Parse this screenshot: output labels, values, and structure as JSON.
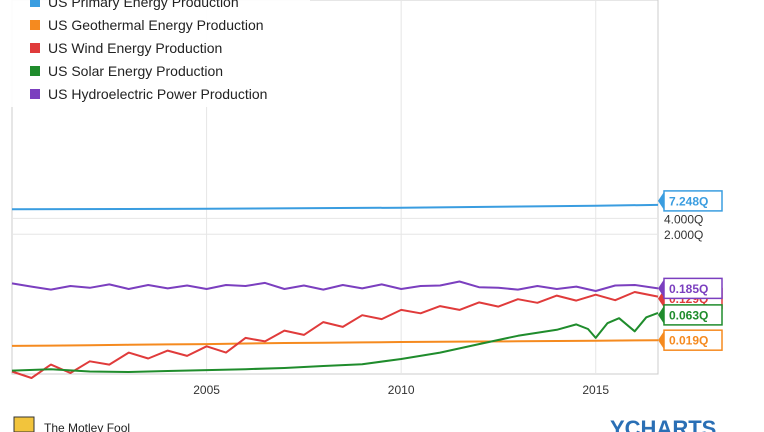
{
  "chart_data": {
    "type": "line",
    "y_scale": "log",
    "grid": true,
    "legend_placement": "top-left",
    "x_range": [
      2000.0,
      2016.6
    ],
    "x_ticks": [
      2005,
      2010,
      2015
    ],
    "y_ticks": [
      {
        "value": 4.0,
        "label": "4.000Q"
      },
      {
        "value": 2.0,
        "label": "2.000Q"
      }
    ],
    "series": [
      {
        "name": "US Primary Energy Production",
        "color": "#3a9de0",
        "last_label": "7.248Q",
        "last_value": 7.248,
        "points": [
          [
            2000.0,
            6.0
          ],
          [
            2005.0,
            6.1
          ],
          [
            2010.0,
            6.4
          ],
          [
            2015.0,
            7.0
          ],
          [
            2016.6,
            7.248
          ]
        ]
      },
      {
        "name": "US Geothermal Energy Production",
        "color": "#f58a1f",
        "last_label": "0.019Q",
        "last_value": 0.019,
        "points": [
          [
            2000.0,
            0.0148
          ],
          [
            2001.0,
            0.015
          ],
          [
            2002.0,
            0.0152
          ],
          [
            2003.0,
            0.0155
          ],
          [
            2004.0,
            0.0158
          ],
          [
            2005.0,
            0.016
          ],
          [
            2006.0,
            0.0164
          ],
          [
            2007.0,
            0.0168
          ],
          [
            2008.0,
            0.017
          ],
          [
            2009.0,
            0.0172
          ],
          [
            2010.0,
            0.0175
          ],
          [
            2011.0,
            0.0177
          ],
          [
            2012.0,
            0.0179
          ],
          [
            2013.0,
            0.0181
          ],
          [
            2014.0,
            0.0183
          ],
          [
            2015.0,
            0.0186
          ],
          [
            2016.0,
            0.0188
          ],
          [
            2016.6,
            0.019
          ]
        ]
      },
      {
        "name": "US Wind Energy Production",
        "color": "#e03b3b",
        "last_label": "0.129Q",
        "last_value": 0.129,
        "points": [
          [
            2000.0,
            0.0048
          ],
          [
            2000.5,
            0.0036
          ],
          [
            2001.0,
            0.0065
          ],
          [
            2001.5,
            0.0045
          ],
          [
            2002.0,
            0.0075
          ],
          [
            2002.5,
            0.0065
          ],
          [
            2003.0,
            0.011
          ],
          [
            2003.5,
            0.0085
          ],
          [
            2004.0,
            0.012
          ],
          [
            2004.5,
            0.0095
          ],
          [
            2005.0,
            0.0145
          ],
          [
            2005.5,
            0.011
          ],
          [
            2006.0,
            0.021
          ],
          [
            2006.5,
            0.018
          ],
          [
            2007.0,
            0.029
          ],
          [
            2007.5,
            0.024
          ],
          [
            2008.0,
            0.042
          ],
          [
            2008.5,
            0.034
          ],
          [
            2009.0,
            0.057
          ],
          [
            2009.5,
            0.048
          ],
          [
            2010.0,
            0.072
          ],
          [
            2010.5,
            0.062
          ],
          [
            2011.0,
            0.085
          ],
          [
            2011.5,
            0.072
          ],
          [
            2012.0,
            0.1
          ],
          [
            2012.5,
            0.083
          ],
          [
            2013.0,
            0.115
          ],
          [
            2013.5,
            0.098
          ],
          [
            2014.0,
            0.135
          ],
          [
            2014.5,
            0.108
          ],
          [
            2015.0,
            0.14
          ],
          [
            2015.5,
            0.11
          ],
          [
            2016.0,
            0.158
          ],
          [
            2016.6,
            0.129
          ]
        ]
      },
      {
        "name": "US Solar Energy Production",
        "color": "#1f8c2c",
        "last_label": "0.063Q",
        "last_value": 0.063,
        "points": [
          [
            2000.0,
            0.005
          ],
          [
            2001.0,
            0.0053
          ],
          [
            2002.0,
            0.0048
          ],
          [
            2003.0,
            0.0047
          ],
          [
            2004.0,
            0.0049
          ],
          [
            2005.0,
            0.0051
          ],
          [
            2006.0,
            0.0053
          ],
          [
            2007.0,
            0.0056
          ],
          [
            2008.0,
            0.0061
          ],
          [
            2009.0,
            0.0066
          ],
          [
            2010.0,
            0.0083
          ],
          [
            2011.0,
            0.011
          ],
          [
            2012.0,
            0.016
          ],
          [
            2013.0,
            0.023
          ],
          [
            2014.0,
            0.03
          ],
          [
            2014.5,
            0.038
          ],
          [
            2014.8,
            0.031
          ],
          [
            2015.0,
            0.021
          ],
          [
            2015.3,
            0.04
          ],
          [
            2015.6,
            0.05
          ],
          [
            2016.0,
            0.028
          ],
          [
            2016.3,
            0.052
          ],
          [
            2016.6,
            0.063
          ]
        ]
      },
      {
        "name": "US Hydroelectric Power Production",
        "color": "#7b3fbf",
        "last_label": "0.185Q",
        "last_value": 0.185,
        "points": [
          [
            2000.0,
            0.23
          ],
          [
            2000.5,
            0.2
          ],
          [
            2001.0,
            0.175
          ],
          [
            2001.5,
            0.205
          ],
          [
            2002.0,
            0.19
          ],
          [
            2002.5,
            0.22
          ],
          [
            2003.0,
            0.18
          ],
          [
            2003.5,
            0.215
          ],
          [
            2004.0,
            0.185
          ],
          [
            2004.5,
            0.21
          ],
          [
            2005.0,
            0.18
          ],
          [
            2005.5,
            0.215
          ],
          [
            2006.0,
            0.205
          ],
          [
            2006.5,
            0.235
          ],
          [
            2007.0,
            0.18
          ],
          [
            2007.5,
            0.21
          ],
          [
            2008.0,
            0.175
          ],
          [
            2008.5,
            0.215
          ],
          [
            2009.0,
            0.185
          ],
          [
            2009.5,
            0.22
          ],
          [
            2010.0,
            0.18
          ],
          [
            2010.5,
            0.205
          ],
          [
            2011.0,
            0.21
          ],
          [
            2011.5,
            0.25
          ],
          [
            2012.0,
            0.195
          ],
          [
            2012.5,
            0.19
          ],
          [
            2013.0,
            0.175
          ],
          [
            2013.5,
            0.205
          ],
          [
            2014.0,
            0.18
          ],
          [
            2014.5,
            0.2
          ],
          [
            2015.0,
            0.165
          ],
          [
            2015.5,
            0.21
          ],
          [
            2016.0,
            0.215
          ],
          [
            2016.6,
            0.185
          ]
        ]
      }
    ]
  },
  "footer": {
    "brand": "The Motley Fool",
    "logo_text": "YCHARTS"
  }
}
